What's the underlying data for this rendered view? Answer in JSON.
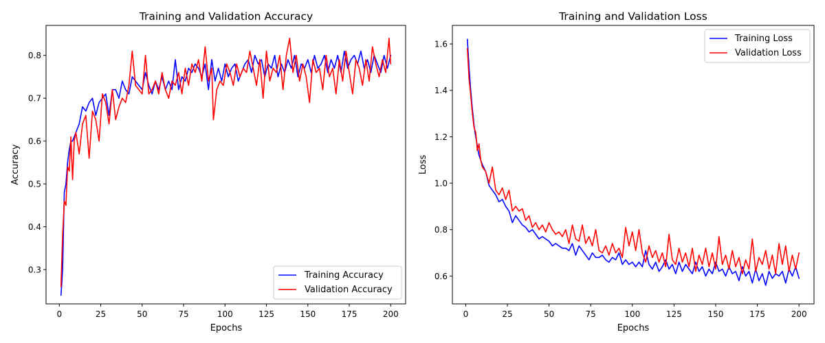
{
  "chart_data": [
    {
      "type": "line",
      "title": "Training and Validation Accuracy",
      "xlabel": "Epochs",
      "ylabel": "Accuracy",
      "xlim": [
        -8,
        209
      ],
      "ylim": [
        0.22,
        0.87
      ],
      "xticks": [
        0,
        25,
        50,
        75,
        100,
        125,
        150,
        175,
        200
      ],
      "yticks": [
        0.3,
        0.4,
        0.5,
        0.6,
        0.7,
        0.8
      ],
      "ytick_labels": [
        "0.3",
        "0.4",
        "0.5",
        "0.6",
        "0.7",
        "0.8"
      ],
      "legend": "lower-right",
      "grid": false,
      "series": [
        {
          "name": "Training Accuracy",
          "color": "#0000ff",
          "x": [
            1,
            2,
            3,
            4,
            5,
            6,
            7,
            8,
            10,
            12,
            14,
            16,
            18,
            20,
            22,
            24,
            26,
            28,
            30,
            32,
            34,
            36,
            38,
            40,
            42,
            44,
            46,
            48,
            50,
            52,
            54,
            56,
            58,
            60,
            62,
            64,
            66,
            68,
            70,
            72,
            74,
            76,
            78,
            80,
            82,
            84,
            86,
            88,
            90,
            92,
            94,
            96,
            98,
            100,
            102,
            104,
            106,
            108,
            110,
            112,
            114,
            116,
            118,
            120,
            122,
            124,
            126,
            128,
            130,
            132,
            134,
            136,
            138,
            140,
            142,
            144,
            146,
            148,
            150,
            152,
            154,
            156,
            158,
            160,
            162,
            164,
            166,
            168,
            170,
            172,
            174,
            176,
            178,
            180,
            182,
            184,
            186,
            188,
            190,
            192,
            194,
            196,
            198,
            200
          ],
          "y": [
            0.24,
            0.3,
            0.48,
            0.5,
            0.55,
            0.58,
            0.6,
            0.6,
            0.62,
            0.64,
            0.68,
            0.67,
            0.69,
            0.7,
            0.66,
            0.69,
            0.7,
            0.71,
            0.66,
            0.72,
            0.72,
            0.7,
            0.74,
            0.72,
            0.71,
            0.75,
            0.74,
            0.73,
            0.72,
            0.76,
            0.73,
            0.71,
            0.74,
            0.72,
            0.75,
            0.72,
            0.74,
            0.72,
            0.79,
            0.72,
            0.75,
            0.74,
            0.77,
            0.76,
            0.78,
            0.77,
            0.75,
            0.78,
            0.72,
            0.79,
            0.74,
            0.77,
            0.74,
            0.78,
            0.75,
            0.77,
            0.78,
            0.74,
            0.76,
            0.78,
            0.79,
            0.76,
            0.8,
            0.78,
            0.79,
            0.75,
            0.78,
            0.77,
            0.8,
            0.75,
            0.78,
            0.76,
            0.79,
            0.77,
            0.8,
            0.75,
            0.78,
            0.77,
            0.79,
            0.76,
            0.8,
            0.77,
            0.78,
            0.8,
            0.76,
            0.79,
            0.77,
            0.8,
            0.76,
            0.81,
            0.77,
            0.79,
            0.8,
            0.78,
            0.81,
            0.77,
            0.79,
            0.76,
            0.8,
            0.78,
            0.76,
            0.8,
            0.77,
            0.8
          ]
        },
        {
          "name": "Validation Accuracy",
          "color": "#ff0000",
          "x": [
            1,
            2,
            3,
            4,
            5,
            6,
            7,
            8,
            9,
            10,
            12,
            14,
            16,
            18,
            20,
            22,
            24,
            26,
            28,
            30,
            32,
            34,
            36,
            38,
            40,
            42,
            44,
            46,
            48,
            50,
            52,
            54,
            56,
            58,
            60,
            62,
            64,
            66,
            68,
            70,
            72,
            74,
            76,
            78,
            80,
            82,
            84,
            86,
            88,
            90,
            92,
            93,
            95,
            97,
            99,
            101,
            103,
            105,
            107,
            109,
            111,
            113,
            115,
            117,
            119,
            121,
            123,
            125,
            127,
            129,
            131,
            133,
            135,
            137,
            139,
            141,
            143,
            145,
            147,
            149,
            151,
            153,
            155,
            157,
            159,
            161,
            163,
            165,
            167,
            169,
            171,
            173,
            175,
            177,
            179,
            181,
            183,
            185,
            187,
            189,
            191,
            193,
            195,
            197,
            199,
            200
          ],
          "y": [
            0.26,
            0.38,
            0.46,
            0.45,
            0.54,
            0.53,
            0.61,
            0.51,
            0.6,
            0.62,
            0.57,
            0.64,
            0.66,
            0.56,
            0.67,
            0.65,
            0.6,
            0.71,
            0.69,
            0.64,
            0.72,
            0.65,
            0.68,
            0.7,
            0.69,
            0.73,
            0.81,
            0.73,
            0.72,
            0.71,
            0.8,
            0.71,
            0.72,
            0.74,
            0.71,
            0.76,
            0.72,
            0.7,
            0.74,
            0.73,
            0.76,
            0.71,
            0.77,
            0.73,
            0.78,
            0.76,
            0.79,
            0.74,
            0.82,
            0.74,
            0.77,
            0.65,
            0.72,
            0.74,
            0.73,
            0.78,
            0.76,
            0.73,
            0.78,
            0.75,
            0.77,
            0.76,
            0.81,
            0.77,
            0.73,
            0.79,
            0.7,
            0.81,
            0.74,
            0.77,
            0.76,
            0.8,
            0.72,
            0.8,
            0.84,
            0.76,
            0.8,
            0.74,
            0.78,
            0.75,
            0.69,
            0.79,
            0.76,
            0.77,
            0.72,
            0.8,
            0.75,
            0.77,
            0.71,
            0.79,
            0.74,
            0.81,
            0.76,
            0.71,
            0.79,
            0.77,
            0.73,
            0.79,
            0.74,
            0.82,
            0.78,
            0.75,
            0.79,
            0.76,
            0.84,
            0.78
          ]
        }
      ]
    },
    {
      "type": "line",
      "title": "Training and Validation Loss",
      "xlabel": "Epochs",
      "ylabel": "Loss",
      "xlim": [
        -8,
        209
      ],
      "ylim": [
        0.48,
        1.68
      ],
      "xticks": [
        0,
        25,
        50,
        75,
        100,
        125,
        150,
        175,
        200
      ],
      "yticks": [
        0.6,
        0.8,
        1.0,
        1.2,
        1.4,
        1.6
      ],
      "ytick_labels": [
        "0.6",
        "0.8",
        "1.0",
        "1.2",
        "1.4",
        "1.6"
      ],
      "legend": "upper-right",
      "grid": false,
      "series": [
        {
          "name": "Training Loss",
          "color": "#0000ff",
          "x": [
            1,
            2,
            3,
            4,
            5,
            6,
            8,
            10,
            12,
            14,
            16,
            18,
            20,
            22,
            24,
            26,
            28,
            30,
            32,
            34,
            36,
            38,
            40,
            42,
            44,
            46,
            48,
            50,
            52,
            54,
            56,
            58,
            60,
            62,
            64,
            66,
            68,
            70,
            72,
            74,
            76,
            78,
            80,
            82,
            84,
            86,
            88,
            90,
            92,
            94,
            96,
            98,
            100,
            102,
            104,
            106,
            108,
            110,
            112,
            114,
            116,
            118,
            120,
            122,
            124,
            126,
            128,
            130,
            132,
            134,
            136,
            138,
            140,
            142,
            144,
            146,
            148,
            150,
            152,
            154,
            156,
            158,
            160,
            162,
            164,
            166,
            168,
            170,
            172,
            174,
            176,
            178,
            180,
            182,
            184,
            186,
            188,
            190,
            192,
            194,
            196,
            198,
            200
          ],
          "y": [
            1.62,
            1.5,
            1.4,
            1.32,
            1.25,
            1.2,
            1.12,
            1.08,
            1.05,
            0.99,
            0.97,
            0.95,
            0.92,
            0.93,
            0.9,
            0.88,
            0.83,
            0.86,
            0.84,
            0.82,
            0.81,
            0.79,
            0.8,
            0.78,
            0.76,
            0.77,
            0.76,
            0.75,
            0.73,
            0.74,
            0.73,
            0.72,
            0.72,
            0.71,
            0.74,
            0.69,
            0.73,
            0.71,
            0.69,
            0.67,
            0.7,
            0.68,
            0.68,
            0.69,
            0.67,
            0.66,
            0.68,
            0.67,
            0.7,
            0.65,
            0.67,
            0.65,
            0.66,
            0.64,
            0.66,
            0.64,
            0.71,
            0.65,
            0.63,
            0.66,
            0.62,
            0.64,
            0.67,
            0.63,
            0.65,
            0.61,
            0.66,
            0.62,
            0.65,
            0.63,
            0.61,
            0.66,
            0.62,
            0.64,
            0.6,
            0.63,
            0.61,
            0.66,
            0.62,
            0.63,
            0.6,
            0.64,
            0.61,
            0.62,
            0.58,
            0.64,
            0.6,
            0.62,
            0.57,
            0.63,
            0.58,
            0.61,
            0.56,
            0.62,
            0.59,
            0.61,
            0.6,
            0.62,
            0.57,
            0.63,
            0.6,
            0.64,
            0.59
          ]
        },
        {
          "name": "Validation Loss",
          "color": "#ff0000",
          "x": [
            1,
            2,
            3,
            4,
            5,
            6,
            7,
            8,
            9,
            10,
            12,
            14,
            16,
            18,
            20,
            22,
            24,
            26,
            28,
            30,
            32,
            34,
            36,
            38,
            40,
            42,
            44,
            46,
            48,
            50,
            52,
            54,
            56,
            58,
            60,
            62,
            64,
            66,
            68,
            70,
            72,
            74,
            76,
            78,
            80,
            82,
            84,
            86,
            88,
            90,
            92,
            94,
            96,
            98,
            100,
            102,
            104,
            106,
            108,
            110,
            112,
            114,
            116,
            118,
            120,
            122,
            124,
            126,
            128,
            130,
            132,
            134,
            136,
            138,
            140,
            142,
            144,
            146,
            148,
            150,
            152,
            154,
            156,
            158,
            160,
            162,
            164,
            166,
            168,
            170,
            172,
            174,
            176,
            178,
            180,
            182,
            184,
            186,
            188,
            190,
            192,
            194,
            196,
            198,
            200
          ],
          "y": [
            1.58,
            1.45,
            1.38,
            1.3,
            1.24,
            1.22,
            1.14,
            1.17,
            1.1,
            1.07,
            1.05,
            1.0,
            1.07,
            0.97,
            0.95,
            0.98,
            0.93,
            0.97,
            0.88,
            0.9,
            0.88,
            0.89,
            0.84,
            0.86,
            0.81,
            0.83,
            0.8,
            0.82,
            0.79,
            0.83,
            0.8,
            0.78,
            0.79,
            0.77,
            0.8,
            0.74,
            0.82,
            0.76,
            0.75,
            0.82,
            0.74,
            0.77,
            0.73,
            0.8,
            0.71,
            0.7,
            0.73,
            0.69,
            0.74,
            0.7,
            0.72,
            0.68,
            0.81,
            0.73,
            0.79,
            0.71,
            0.8,
            0.7,
            0.66,
            0.73,
            0.68,
            0.71,
            0.66,
            0.7,
            0.64,
            0.78,
            0.67,
            0.65,
            0.72,
            0.66,
            0.7,
            0.64,
            0.72,
            0.62,
            0.69,
            0.65,
            0.72,
            0.64,
            0.7,
            0.63,
            0.77,
            0.65,
            0.69,
            0.63,
            0.71,
            0.64,
            0.68,
            0.61,
            0.67,
            0.63,
            0.76,
            0.62,
            0.68,
            0.65,
            0.71,
            0.63,
            0.69,
            0.61,
            0.74,
            0.65,
            0.73,
            0.62,
            0.69,
            0.63,
            0.7
          ]
        }
      ]
    }
  ]
}
